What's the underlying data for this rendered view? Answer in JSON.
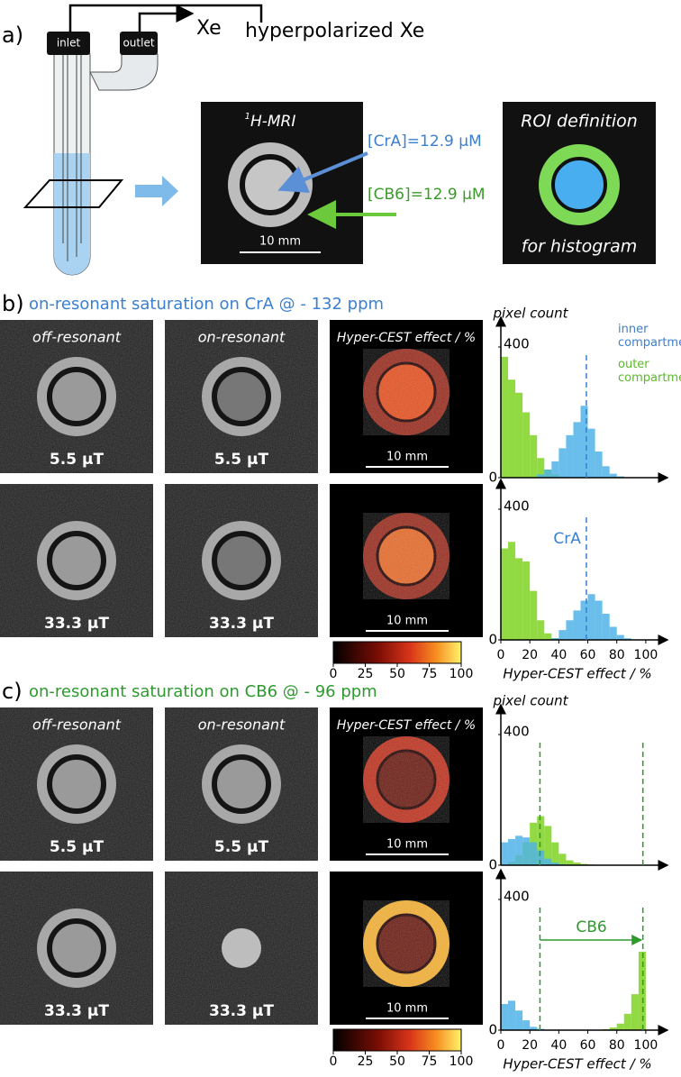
{
  "panel_a": {
    "label": "a)",
    "inlet": "inlet",
    "outlet": "outlet",
    "xe": "Xe",
    "hp_xe": "hyperpolarized Xe",
    "mri_sup": "1",
    "mri_title": "H-MRI",
    "cra": "[CrA]=12.9 µM",
    "cb6": "[CB6]=12.9 µM",
    "scale": "10 mm",
    "roi_top": "ROI definition",
    "roi_bottom": "for histogram"
  },
  "panel_b": {
    "label": "b)",
    "heading": "on-resonant saturation on CrA @ - 132 ppm",
    "col_labels": [
      "off-resonant",
      "on-resonant",
      "Hyper-CEST effect / %"
    ],
    "rows": [
      {
        "fields": [
          "5.5 µT",
          "5.5 µT"
        ],
        "scale": "10 mm"
      },
      {
        "fields": [
          "33.3 µT",
          "33.3 µT"
        ],
        "scale": "10 mm"
      }
    ],
    "colorbar": {
      "lim": [
        0,
        100
      ],
      "ticks": [
        0,
        25,
        50,
        75,
        100
      ]
    }
  },
  "panel_c": {
    "label": "c)",
    "heading": "on-resonant saturation on CB6 @ - 96 ppm",
    "col_labels": [
      "off-resonant",
      "on-resonant",
      "Hyper-CEST effect / %"
    ],
    "rows": [
      {
        "fields": [
          "5.5 µT",
          "5.5 µT"
        ],
        "scale": "10 mm"
      },
      {
        "fields": [
          "33.3 µT",
          "33.3 µT"
        ],
        "scale": "10 mm"
      }
    ],
    "colorbar": {
      "lim": [
        0,
        100
      ],
      "ticks": [
        0,
        25,
        50,
        75,
        100
      ]
    }
  },
  "chart_data": [
    {
      "type": "histogram",
      "ylabel": "pixel count",
      "bins": [
        0,
        5,
        10,
        15,
        20,
        25,
        30,
        35,
        40,
        45,
        50,
        55,
        60,
        65,
        70,
        75,
        80,
        85,
        90,
        95,
        100
      ],
      "xlim": [
        0,
        110
      ],
      "ylim": [
        0,
        480
      ],
      "yticks": [
        0,
        400
      ],
      "vlines": [
        59
      ],
      "vline_color": "#3b7fd0",
      "series": [
        {
          "name": "outer compartment",
          "color": "#7ed321",
          "values": [
            370,
            300,
            260,
            200,
            130,
            60,
            25,
            10,
            3,
            0,
            0,
            0,
            0,
            0,
            0,
            0,
            0,
            0,
            0,
            0
          ]
        },
        {
          "name": "inner compartment",
          "color": "#4fb3e8",
          "values": [
            0,
            0,
            0,
            0,
            0,
            10,
            25,
            50,
            90,
            130,
            170,
            220,
            150,
            80,
            35,
            12,
            4,
            0,
            0,
            0
          ]
        }
      ]
    },
    {
      "type": "histogram",
      "xlabel": "Hyper-CEST effect / %",
      "annotation": "CrA",
      "bins": [
        0,
        5,
        10,
        15,
        20,
        25,
        30,
        35,
        40,
        45,
        50,
        55,
        60,
        65,
        70,
        75,
        80,
        85,
        90,
        95,
        100
      ],
      "xlim": [
        0,
        110
      ],
      "ylim": [
        0,
        480
      ],
      "yticks": [
        0,
        400
      ],
      "xticks": [
        0,
        20,
        40,
        60,
        80,
        100
      ],
      "vlines": [
        59
      ],
      "vline_color": "#3b7fd0",
      "series": [
        {
          "color": "#7ed321",
          "values": [
            280,
            300,
            250,
            240,
            150,
            60,
            20,
            5,
            0,
            0,
            0,
            0,
            0,
            0,
            0,
            0,
            0,
            0,
            0,
            0
          ]
        },
        {
          "color": "#4fb3e8",
          "values": [
            0,
            0,
            0,
            0,
            0,
            0,
            0,
            5,
            30,
            60,
            90,
            120,
            140,
            120,
            80,
            40,
            15,
            5,
            0,
            0
          ]
        }
      ]
    },
    {
      "type": "histogram",
      "ylabel": "pixel count",
      "bins": [
        0,
        5,
        10,
        15,
        20,
        25,
        30,
        35,
        40,
        45,
        50,
        55,
        60,
        65,
        70,
        75,
        80,
        85,
        90,
        95,
        100
      ],
      "xlim": [
        0,
        110
      ],
      "ylim": [
        0,
        480
      ],
      "yticks": [
        0,
        400
      ],
      "vlines": [
        27,
        98
      ],
      "vline_color": "#2e9a2e",
      "series": [
        {
          "color": "#7ed321",
          "values": [
            0,
            10,
            30,
            70,
            130,
            150,
            120,
            70,
            35,
            15,
            8,
            4,
            2,
            0,
            0,
            0,
            0,
            0,
            0,
            0
          ]
        },
        {
          "color": "#4fb3e8",
          "values": [
            70,
            80,
            90,
            85,
            70,
            45,
            20,
            8,
            3,
            0,
            0,
            0,
            0,
            0,
            0,
            0,
            0,
            0,
            0,
            0
          ]
        }
      ]
    },
    {
      "type": "histogram",
      "xlabel": "Hyper-CEST effect / %",
      "annotation": "CB6",
      "bins": [
        0,
        5,
        10,
        15,
        20,
        25,
        30,
        35,
        40,
        45,
        50,
        55,
        60,
        65,
        70,
        75,
        80,
        85,
        90,
        95,
        100
      ],
      "xlim": [
        0,
        110
      ],
      "ylim": [
        0,
        480
      ],
      "yticks": [
        0,
        400
      ],
      "xticks": [
        0,
        20,
        40,
        60,
        80,
        100
      ],
      "vlines": [
        27,
        98
      ],
      "vline_color": "#2e9a2e",
      "series": [
        {
          "color": "#7ed321",
          "values": [
            0,
            0,
            0,
            0,
            0,
            0,
            0,
            0,
            0,
            0,
            0,
            0,
            0,
            0,
            3,
            8,
            20,
            50,
            110,
            240
          ]
        },
        {
          "color": "#4fb3e8",
          "values": [
            80,
            90,
            60,
            30,
            10,
            4,
            0,
            0,
            0,
            0,
            0,
            0,
            0,
            0,
            0,
            0,
            0,
            0,
            0,
            0
          ]
        }
      ]
    }
  ]
}
